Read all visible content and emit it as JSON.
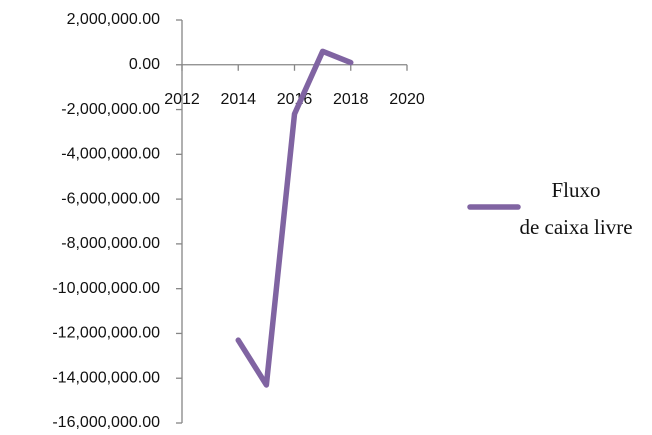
{
  "chart_data": {
    "type": "line",
    "x": [
      2014,
      2015,
      2016,
      2017,
      2018
    ],
    "series": [
      {
        "name": "Fluxo de caixa livre",
        "color": "#8064a2",
        "values": [
          -12300000,
          -14300000,
          -2200000,
          600000,
          100000
        ]
      }
    ],
    "xlim": [
      2012,
      2020
    ],
    "xticks": [
      2012,
      2014,
      2016,
      2018,
      2020
    ],
    "ylim": [
      -16000000,
      2000000
    ],
    "yticks": [
      {
        "value": -16000000,
        "label": "-16,000,000.00"
      },
      {
        "value": -14000000,
        "label": "-14,000,000.00"
      },
      {
        "value": -12000000,
        "label": "-12,000,000.00"
      },
      {
        "value": -10000000,
        "label": "-10,000,000.00"
      },
      {
        "value": -8000000,
        "label": "-8,000,000.00"
      },
      {
        "value": -6000000,
        "label": "-6,000,000.00"
      },
      {
        "value": -4000000,
        "label": "-4,000,000.00"
      },
      {
        "value": -2000000,
        "label": "-2,000,000.00"
      },
      {
        "value": 0,
        "label": "0.00"
      },
      {
        "value": 2000000,
        "label": "2,000,000.00"
      }
    ],
    "legend": "right"
  }
}
